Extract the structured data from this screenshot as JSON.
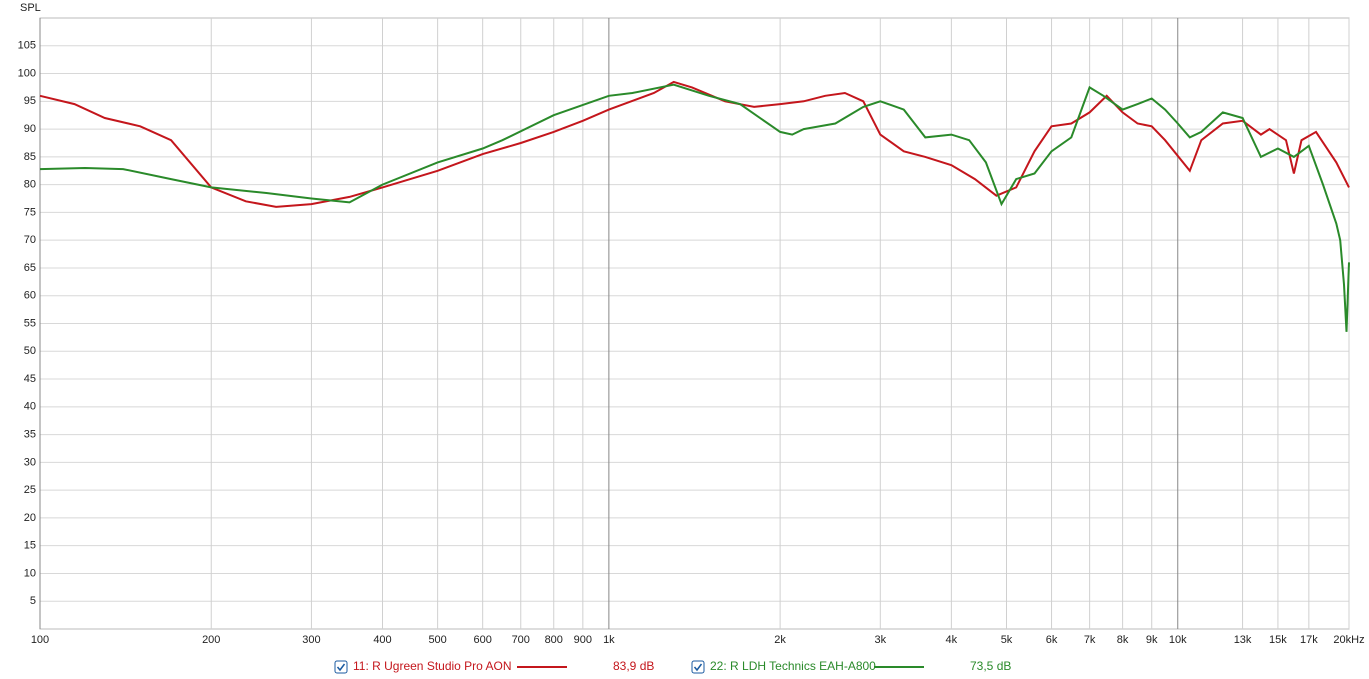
{
  "chart_data": {
    "type": "line",
    "y_label": "SPL",
    "xscale": "log",
    "xlim": [
      100,
      20000
    ],
    "ylim": [
      0,
      110
    ],
    "grid": true,
    "xticks": [
      100,
      200,
      300,
      400,
      500,
      600,
      700,
      800,
      900,
      {
        "value": 1000,
        "label": "1k"
      },
      {
        "value": 2000,
        "label": "2k"
      },
      {
        "value": 3000,
        "label": "3k"
      },
      {
        "value": 4000,
        "label": "4k"
      },
      {
        "value": 5000,
        "label": "5k"
      },
      {
        "value": 6000,
        "label": "6k"
      },
      {
        "value": 7000,
        "label": "7k"
      },
      {
        "value": 8000,
        "label": "8k"
      },
      {
        "value": 9000,
        "label": "9k"
      },
      {
        "value": 10000,
        "label": "10k"
      },
      {
        "value": 13000,
        "label": "13k"
      },
      {
        "value": 15000,
        "label": "15k"
      },
      {
        "value": 17000,
        "label": "17k"
      },
      {
        "value": 20000,
        "label": "20kHz"
      }
    ],
    "yticks": [
      5,
      10,
      15,
      20,
      25,
      30,
      35,
      40,
      45,
      50,
      55,
      60,
      65,
      70,
      75,
      80,
      85,
      90,
      95,
      100,
      105
    ],
    "series": [
      {
        "name": "11: R Ugreen Studio Pro AON",
        "level": "83,9 dB",
        "color": "#c4161c",
        "x": [
          100,
          115,
          130,
          150,
          170,
          200,
          230,
          260,
          300,
          350,
          400,
          500,
          600,
          700,
          800,
          900,
          1000,
          1200,
          1300,
          1400,
          1600,
          1800,
          2000,
          2200,
          2400,
          2600,
          2800,
          3000,
          3300,
          3600,
          4000,
          4400,
          4800,
          5200,
          5600,
          6000,
          6500,
          7000,
          7500,
          8000,
          8500,
          9000,
          9500,
          10500,
          11000,
          12000,
          13000,
          14000,
          14500,
          15500,
          16000,
          16500,
          17500,
          19000,
          20000
        ],
        "values": [
          96,
          94.5,
          92,
          90.5,
          88,
          79.5,
          77,
          76,
          76.5,
          77.8,
          79.5,
          82.5,
          85.5,
          87.5,
          89.5,
          91.5,
          93.5,
          96.5,
          98.5,
          97.5,
          95,
          94,
          94.5,
          95,
          96,
          96.5,
          95,
          89,
          86,
          85,
          83.5,
          81,
          78,
          79.5,
          86,
          90.5,
          91,
          93,
          96,
          93,
          91,
          90.5,
          88,
          82.5,
          88,
          91,
          91.5,
          89,
          90,
          88,
          82,
          88,
          89.5,
          84,
          79.5
        ]
      },
      {
        "name": "22: R LDH Technics EAH-A800",
        "level": "73,5 dB",
        "color": "#2a8a2a",
        "x": [
          100,
          120,
          140,
          170,
          200,
          250,
          300,
          350,
          400,
          500,
          600,
          650,
          800,
          1000,
          1100,
          1300,
          1500,
          1700,
          2000,
          2100,
          2200,
          2500,
          2800,
          3000,
          3300,
          3600,
          4000,
          4300,
          4600,
          4900,
          5200,
          5600,
          6000,
          6500,
          7000,
          7400,
          8000,
          8500,
          9000,
          9500,
          10000,
          10500,
          11000,
          12000,
          13000,
          14000,
          15000,
          16000,
          17000,
          18000,
          19000,
          19300,
          19600,
          19800,
          20000
        ],
        "values": [
          82.8,
          83,
          82.8,
          81,
          79.5,
          78.5,
          77.5,
          76.8,
          80,
          84,
          86.5,
          88,
          92.5,
          96,
          96.5,
          98,
          96,
          94.5,
          89.5,
          89,
          90,
          91,
          94,
          95,
          93.5,
          88.5,
          89,
          88,
          84,
          76.5,
          81,
          82,
          86,
          88.5,
          97.5,
          96,
          93.5,
          94.5,
          95.5,
          93.5,
          91,
          88.5,
          89.5,
          93,
          92,
          85,
          86.5,
          85,
          87,
          80,
          73,
          70,
          62,
          53.5,
          66
        ]
      }
    ]
  }
}
